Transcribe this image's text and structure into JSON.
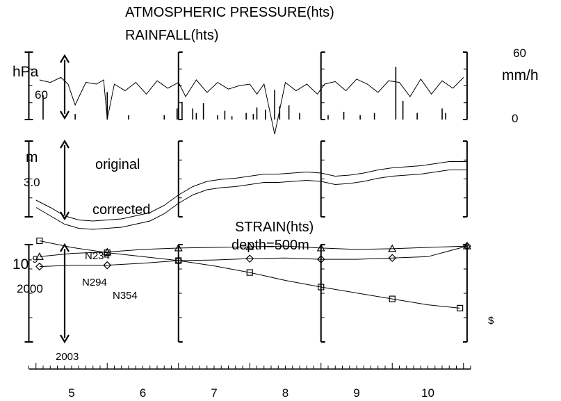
{
  "chart_data": [
    {
      "type": "line",
      "title": [
        "ATMOSPHERIC PRESSURE(hts)",
        "RAINFALL(hts)"
      ],
      "left_axis": {
        "unit": "hPa",
        "scale_label": "60"
      },
      "right_axis": {
        "unit": "mm/h",
        "ticks": [
          "60",
          "0"
        ],
        "ylim": [
          0,
          60
        ]
      },
      "x_months": [
        5,
        6,
        7,
        8,
        9,
        10
      ],
      "series": [
        {
          "name": "pressure",
          "x": [
            4.55,
            4.7,
            4.85,
            4.95,
            5.05,
            5.2,
            5.35,
            5.45,
            5.5,
            5.6,
            5.75,
            5.9,
            6.05,
            6.2,
            6.35,
            6.5,
            6.6,
            6.75,
            6.9,
            7.05,
            7.2,
            7.35,
            7.5,
            7.6,
            7.7,
            7.85,
            8.0,
            8.15,
            8.3,
            8.45,
            8.55,
            8.7,
            8.85,
            9.0,
            9.15,
            9.3,
            9.45,
            9.6,
            9.75,
            9.9,
            10.05,
            10.2,
            10.35,
            10.5
          ],
          "y": [
            0.75,
            0.72,
            0.78,
            0.7,
            0.45,
            0.72,
            0.7,
            0.75,
            0.28,
            0.7,
            0.62,
            0.72,
            0.58,
            0.74,
            0.65,
            0.72,
            0.55,
            0.75,
            0.6,
            0.72,
            0.64,
            0.68,
            0.7,
            0.58,
            0.7,
            0.1,
            0.72,
            0.62,
            0.7,
            0.58,
            0.7,
            0.73,
            0.62,
            0.76,
            0.7,
            0.6,
            0.74,
            0.72,
            0.55,
            0.76,
            0.58,
            0.74,
            0.65,
            0.78
          ]
        },
        {
          "name": "rainfall",
          "x": [
            4.6,
            5.05,
            5.5,
            5.8,
            6.3,
            6.48,
            6.55,
            6.7,
            6.75,
            6.85,
            7.05,
            7.15,
            7.25,
            7.45,
            7.55,
            7.6,
            7.72,
            7.85,
            7.92,
            8.05,
            8.2,
            8.6,
            8.82,
            9.05,
            9.25,
            9.55,
            9.65,
            9.85,
            10.2,
            10.25
          ],
          "y": [
            22,
            5,
            25,
            4,
            4,
            10,
            16,
            10,
            6,
            15,
            4,
            8,
            3,
            6,
            5,
            11,
            9,
            27,
            12,
            13,
            6,
            4,
            7,
            4,
            6,
            48,
            17,
            6,
            10,
            6
          ]
        }
      ]
    },
    {
      "type": "line",
      "left_axis": {
        "unit": "m",
        "scale_label": "3.0"
      },
      "x_months": [
        5,
        6,
        7,
        8,
        9,
        10
      ],
      "series": [
        {
          "name": "original",
          "x": [
            4.5,
            4.7,
            4.9,
            5.1,
            5.3,
            5.5,
            5.7,
            5.9,
            6.1,
            6.3,
            6.5,
            6.7,
            6.9,
            7.1,
            7.3,
            7.5,
            7.7,
            7.9,
            8.1,
            8.3,
            8.5,
            8.7,
            8.9,
            9.1,
            9.3,
            9.5,
            9.7,
            9.9,
            10.1,
            10.3,
            10.55
          ],
          "y": [
            3.05,
            2.98,
            2.9,
            2.86,
            2.85,
            2.86,
            2.87,
            2.9,
            2.93,
            3.0,
            3.1,
            3.18,
            3.23,
            3.25,
            3.26,
            3.28,
            3.3,
            3.3,
            3.31,
            3.32,
            3.31,
            3.28,
            3.29,
            3.31,
            3.34,
            3.36,
            3.37,
            3.38,
            3.4,
            3.42,
            3.42
          ]
        },
        {
          "name": "corrected",
          "x": [
            4.5,
            4.7,
            4.9,
            5.1,
            5.3,
            5.5,
            5.7,
            5.9,
            6.1,
            6.3,
            6.5,
            6.7,
            6.9,
            7.1,
            7.3,
            7.5,
            7.7,
            7.9,
            8.1,
            8.3,
            8.5,
            8.7,
            8.9,
            9.1,
            9.3,
            9.5,
            9.7,
            9.9,
            10.1,
            10.3,
            10.55
          ],
          "y": [
            2.98,
            2.9,
            2.82,
            2.78,
            2.77,
            2.78,
            2.79,
            2.82,
            2.85,
            2.92,
            3.02,
            3.1,
            3.15,
            3.17,
            3.18,
            3.2,
            3.22,
            3.22,
            3.23,
            3.24,
            3.23,
            3.2,
            3.21,
            3.23,
            3.26,
            3.28,
            3.29,
            3.3,
            3.32,
            3.34,
            3.34
          ]
        }
      ]
    },
    {
      "type": "line",
      "title": [
        "STRAIN(hts)",
        "depth=500m"
      ],
      "left_axis": {
        "unit": "10",
        "unit_exp": "-9",
        "scale_label": "2000"
      },
      "x_months": [
        5,
        6,
        7,
        8,
        9,
        10
      ],
      "series": [
        {
          "name": "N234",
          "marker": "square",
          "x": [
            4.55,
            5.0,
            5.5,
            6.0,
            6.5,
            7.0,
            7.5,
            8.0,
            8.5,
            9.0,
            9.5,
            10.0,
            10.45
          ],
          "y": [
            7000,
            6000,
            5200,
            4600,
            4000,
            3200,
            2200,
            1000,
            0,
            -900,
            -1800,
            -2700,
            -3200
          ]
        },
        {
          "name": "N294",
          "marker": "triangle",
          "x": [
            4.55,
            5.0,
            5.5,
            6.0,
            6.5,
            7.0,
            7.5,
            8.0,
            8.5,
            9.0,
            9.5,
            10.0,
            10.55
          ],
          "y": [
            4600,
            5100,
            5300,
            5700,
            5900,
            6000,
            6100,
            6200,
            5900,
            5700,
            5800,
            6000,
            6200
          ]
        },
        {
          "name": "N354",
          "marker": "diamond",
          "x": [
            4.55,
            5.0,
            5.5,
            6.0,
            6.5,
            7.0,
            7.5,
            8.0,
            8.5,
            9.0,
            9.5,
            10.0,
            10.55
          ],
          "y": [
            3100,
            3300,
            3300,
            3600,
            4000,
            4100,
            4300,
            4400,
            4200,
            4200,
            4400,
            4600,
            6200
          ]
        }
      ],
      "annotations": [
        "$"
      ]
    }
  ],
  "time_axis": {
    "year": "2003",
    "tick_labels": [
      "5",
      "6",
      "7",
      "8",
      "9",
      "10"
    ]
  }
}
